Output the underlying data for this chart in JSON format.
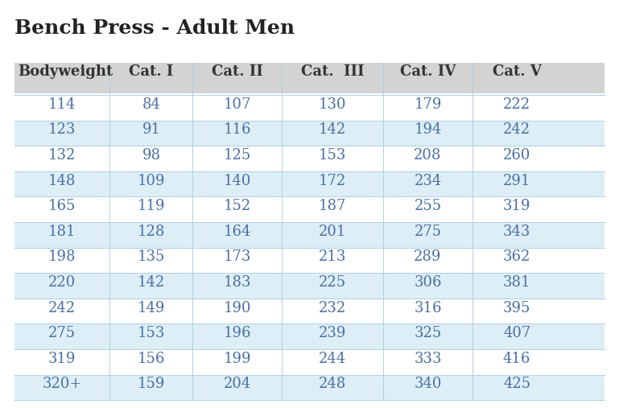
{
  "title": "Bench Press - Adult Men",
  "columns": [
    "Bodyweight",
    "Cat. I",
    "Cat. II",
    "Cat.  III",
    "Cat. IV",
    "Cat. V"
  ],
  "rows": [
    [
      "114",
      "84",
      "107",
      "130",
      "179",
      "222"
    ],
    [
      "123",
      "91",
      "116",
      "142",
      "194",
      "242"
    ],
    [
      "132",
      "98",
      "125",
      "153",
      "208",
      "260"
    ],
    [
      "148",
      "109",
      "140",
      "172",
      "234",
      "291"
    ],
    [
      "165",
      "119",
      "152",
      "187",
      "255",
      "319"
    ],
    [
      "181",
      "128",
      "164",
      "201",
      "275",
      "343"
    ],
    [
      "198",
      "135",
      "173",
      "213",
      "289",
      "362"
    ],
    [
      "220",
      "142",
      "183",
      "225",
      "306",
      "381"
    ],
    [
      "242",
      "149",
      "190",
      "232",
      "316",
      "395"
    ],
    [
      "275",
      "153",
      "196",
      "239",
      "325",
      "407"
    ],
    [
      "319",
      "156",
      "199",
      "244",
      "333",
      "416"
    ],
    [
      "320+",
      "159",
      "204",
      "248",
      "340",
      "425"
    ]
  ],
  "header_bg": "#d3d3d3",
  "row_bg_even": "#ddeef6",
  "row_bg_odd": "#ffffff",
  "text_color_body": "#4a6fa5",
  "text_color_header": "#333333",
  "title_color": "#222222",
  "background": "#ffffff",
  "title_fontsize": 18,
  "header_fontsize": 13,
  "body_fontsize": 13,
  "line_color": "#b0cfe0"
}
